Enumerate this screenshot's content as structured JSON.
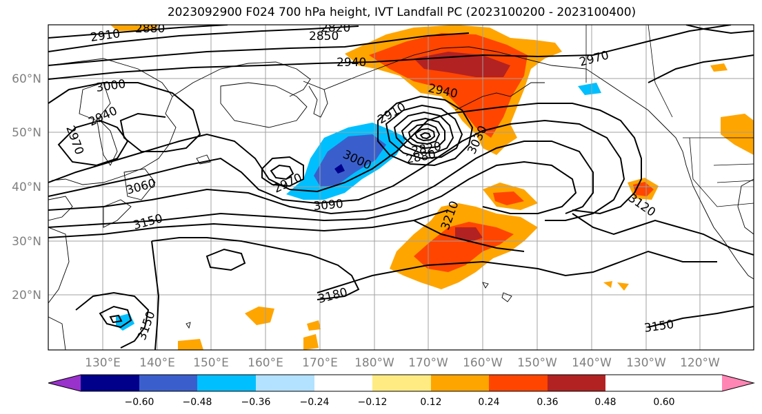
{
  "title": "2023092900 F024 700 hPa height, IVT Landfall PC (2023100200 - 2023100400)",
  "lat_labels": [
    "60°N",
    "50°N",
    "40°N",
    "30°N",
    "20°N"
  ],
  "lon_labels": [
    "130°E",
    "140°E",
    "150°E",
    "160°E",
    "170°E",
    "180°W",
    "170°W",
    "160°W",
    "150°W",
    "140°W",
    "130°W",
    "120°W"
  ],
  "contour_labels": [
    "2910",
    "2880",
    "2820",
    "2850",
    "2940",
    "2970",
    "3000",
    "2940",
    "2970",
    "2940",
    "2910",
    "3030",
    "2820",
    "2880",
    "3000",
    "2970",
    "3060",
    "3090",
    "3150",
    "3120",
    "3210",
    "3180",
    "3150",
    "3150"
  ],
  "colorbar": {
    "ticks": [
      "−0.60",
      "−0.48",
      "−0.36",
      "−0.24",
      "−0.12",
      "0.12",
      "0.24",
      "0.36",
      "0.48",
      "0.60"
    ],
    "colors": [
      "#9932cc",
      "#00008b",
      "#3a5fcd",
      "#00bfff",
      "#b2e2ff",
      "#ffffff",
      "#ffeb82",
      "#ffa500",
      "#ff4500",
      "#b22222",
      "#ff86b4"
    ]
  },
  "colors": {
    "contour": "#000000",
    "grid": "#a0a0a0",
    "tick_text": "#808080"
  }
}
